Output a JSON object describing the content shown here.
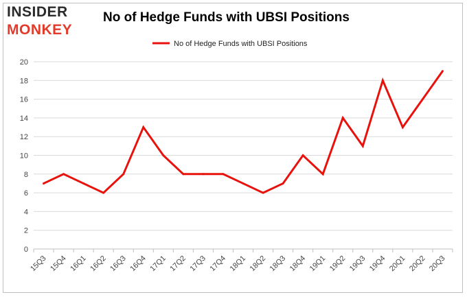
{
  "logo": {
    "line1": "INSIDER",
    "line2": "MONKEY"
  },
  "chart_data": {
    "type": "line",
    "title": "No of Hedge Funds with UBSI Positions",
    "categories": [
      "15Q3",
      "15Q4",
      "16Q1",
      "16Q2",
      "16Q3",
      "16Q4",
      "17Q1",
      "17Q2",
      "17Q3",
      "17Q4",
      "18Q1",
      "18Q2",
      "18Q3",
      "18Q4",
      "19Q1",
      "19Q2",
      "19Q3",
      "19Q4",
      "20Q1",
      "20Q2",
      "20Q3"
    ],
    "series": [
      {
        "name": "No of Hedge Funds with UBSI Positions",
        "values": [
          7,
          8,
          7,
          6,
          8,
          13,
          10,
          8,
          8,
          8,
          7,
          6,
          7,
          10,
          8,
          14,
          11,
          18,
          13,
          16,
          19
        ],
        "color": "#e8120c"
      }
    ],
    "ylim": [
      0,
      20
    ],
    "yticks": [
      0,
      2,
      4,
      6,
      8,
      10,
      12,
      14,
      16,
      18,
      20
    ],
    "grid": true,
    "legend": "top-center",
    "xlabel": "",
    "ylabel": ""
  }
}
